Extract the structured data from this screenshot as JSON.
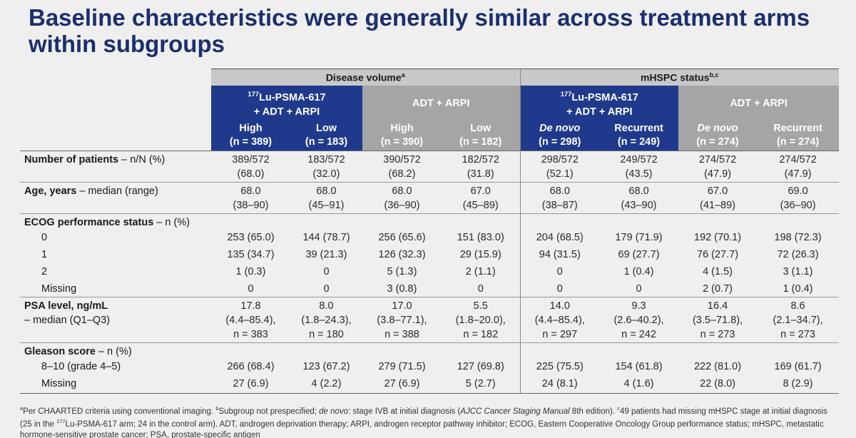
{
  "title": "Baseline characteristics were generally similar across treatment arms within subgroups",
  "groups": [
    {
      "label": "Disease volume",
      "sup": "a"
    },
    {
      "label": "mHSPC status",
      "sup": "b,c"
    }
  ],
  "arms": [
    {
      "sup": "177",
      "line1": "Lu-PSMA-617",
      "line2": "+ ADT + ARPI"
    },
    {
      "label": "ADT + ARPI"
    },
    {
      "sup": "177",
      "line1": "Lu-PSMA-617",
      "line2": "+ ADT + ARPI"
    },
    {
      "label": "ADT + ARPI"
    }
  ],
  "subgroups": [
    {
      "name": "High",
      "n": "(n = 389)"
    },
    {
      "name": "Low",
      "n": "(n = 183)"
    },
    {
      "name": "High",
      "n": "(n = 390)"
    },
    {
      "name": "Low",
      "n": "(n = 182)"
    },
    {
      "name": "De novo",
      "n": "(n = 298)"
    },
    {
      "name": "Recurrent",
      "n": "(n = 249)"
    },
    {
      "name": "De novo",
      "n": "(n = 274)"
    },
    {
      "name": "Recurrent",
      "n": "(n = 274)"
    }
  ],
  "rows": {
    "patients": {
      "label_bold": "Number of patients",
      "label_rest": " – n/N (%)",
      "l1": [
        "389/572",
        "183/572",
        "390/572",
        "182/572",
        "298/572",
        "249/572",
        "274/572",
        "274/572"
      ],
      "l2": [
        "(68.0)",
        "(32.0)",
        "(68.2)",
        "(31.8)",
        "(52.1)",
        "(43.5)",
        "(47.9)",
        "(47.9)"
      ]
    },
    "age": {
      "label_bold": "Age, years",
      "label_rest": " – median (range)",
      "l1": [
        "68.0",
        "68.0",
        "68.0",
        "67.0",
        "68.0",
        "68.0",
        "67.0",
        "69.0"
      ],
      "l2": [
        "(38–90)",
        "(45–91)",
        "(36–90)",
        "(45–89)",
        "(38–87)",
        "(43–90)",
        "(41–89)",
        "(36–90)"
      ]
    },
    "ecog": {
      "label_bold": "ECOG performance status",
      "label_rest": " – n (%)",
      "sub": [
        {
          "label": "0",
          "v": [
            "253 (65.0)",
            "144 (78.7)",
            "256 (65.6)",
            "151 (83.0)",
            "204 (68.5)",
            "179 (71.9)",
            "192 (70.1)",
            "198 (72.3)"
          ]
        },
        {
          "label": "1",
          "v": [
            "135 (34.7)",
            "39 (21.3)",
            "126 (32.3)",
            "29 (15.9)",
            "94 (31.5)",
            "69 (27.7)",
            "76 (27.7)",
            "72 (26.3)"
          ]
        },
        {
          "label": "2",
          "v": [
            "1 (0.3)",
            "0",
            "5 (1.3)",
            "2 (1.1)",
            "0",
            "1 (0.4)",
            "4 (1.5)",
            "3 (1.1)"
          ]
        },
        {
          "label": "Missing",
          "v": [
            "0",
            "0",
            "3 (0.8)",
            "0",
            "0",
            "0",
            "2 (0.7)",
            "1 (0.4)"
          ]
        }
      ]
    },
    "psa": {
      "label_bold": "PSA level, ng/mL",
      "label_rest": "– median (Q1–Q3)",
      "l1": [
        "17.8",
        "8.0",
        "17.0",
        "5.5",
        "14.0",
        "9.3",
        "16.4",
        "8.6"
      ],
      "l2": [
        "(4.4–85.4),",
        "(1.8–24.3),",
        "(3.8–77.1),",
        "(1.8–20.0),",
        "(4.4–85.4),",
        "(2.6–40.2),",
        "(3.5–71.8),",
        "(2.1–34.7),"
      ],
      "l3": [
        "n = 383",
        "n = 180",
        "n = 388",
        "n = 182",
        "n = 297",
        "n = 242",
        "n = 273",
        "n = 273"
      ]
    },
    "gleason": {
      "label_bold": "Gleason score",
      "label_rest": " – n (%)",
      "sub": [
        {
          "label": "8–10 (grade 4–5)",
          "v": [
            "266 (68.4)",
            "123 (67.2)",
            "279 (71.5)",
            "127 (69.8)",
            "225 (75.5)",
            "154 (61.8)",
            "222 (81.0)",
            "169 (61.7)"
          ]
        },
        {
          "label": "Missing",
          "v": [
            "27 (6.9)",
            "4 (2.2)",
            "27 (6.9)",
            "5 (2.7)",
            "24 (8.1)",
            "4 (1.6)",
            "22 (8.0)",
            "8 (2.9)"
          ]
        }
      ]
    }
  },
  "footnote": {
    "a_sup": "a",
    "a": "Per CHAARTED criteria using conventional imaging. ",
    "b_sup": "b",
    "b1": "Subgroup not prespecified; ",
    "b_it": "de novo",
    "b2": ": stage IVB at initial diagnosis (",
    "b_ajcc": "AJCC Cancer Staging Manual",
    "b3": " 8th edition). ",
    "c_sup": "c",
    "c1": "49 patients had missing mHSPC stage at initial diagnosis (25 in the ",
    "c_sup177": "177",
    "c2": "Lu-PSMA-617 arm; 24 in the control arm). ADT, androgen deprivation therapy; ARPI, androgen receptor pathway inhibitor; ECOG, Eastern Cooperative Oncology Group performance status; mHSPC, metastatic hormone-sensitive prostate cancer; PSA, prostate-specific antigen"
  },
  "colors": {
    "navy": "#1f3a8c",
    "gray_header": "#a5a5a5",
    "group_bar": "#c8c8c8",
    "title": "#1b2f6e"
  }
}
